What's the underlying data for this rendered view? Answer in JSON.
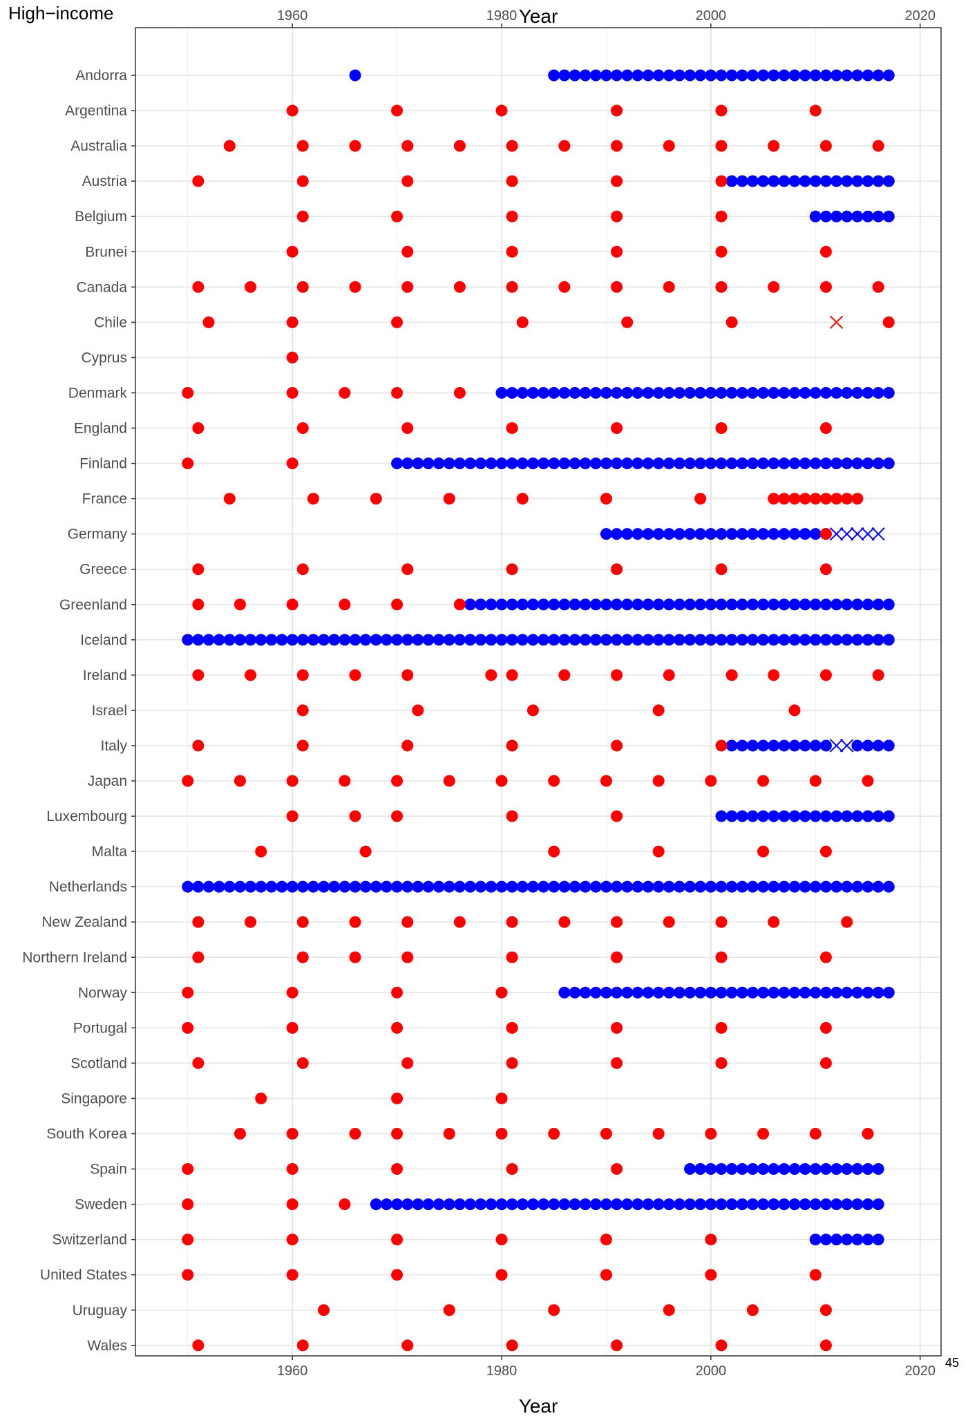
{
  "page": {
    "title": "High−income",
    "page_number": "45"
  },
  "chart_data": {
    "type": "scatter",
    "xlabel": "Year",
    "ylabel": "",
    "xlim": [
      1945,
      2022
    ],
    "xticks": [
      1960,
      1980,
      2000,
      2020
    ],
    "grid": true,
    "legend": "none",
    "colors": {
      "red": "#ff0000",
      "blue": "#0000ff"
    },
    "categories": [
      "Andorra",
      "Argentina",
      "Australia",
      "Austria",
      "Belgium",
      "Brunei",
      "Canada",
      "Chile",
      "Cyprus",
      "Denmark",
      "England",
      "Finland",
      "France",
      "Germany",
      "Greece",
      "Greenland",
      "Iceland",
      "Ireland",
      "Israel",
      "Italy",
      "Japan",
      "Luxembourg",
      "Malta",
      "Netherlands",
      "New Zealand",
      "Northern Ireland",
      "Norway",
      "Portugal",
      "Scotland",
      "Singapore",
      "South Korea",
      "Spain",
      "Sweden",
      "Switzerland",
      "United States",
      "Uruguay",
      "Wales"
    ],
    "rows": [
      {
        "name": "Andorra",
        "red": [],
        "blue": [
          1966,
          [
            1985,
            2017
          ]
        ],
        "red_x": [],
        "blue_x": []
      },
      {
        "name": "Argentina",
        "red": [
          1960,
          1970,
          1980,
          1991,
          2001,
          2010
        ],
        "blue": [],
        "red_x": [],
        "blue_x": []
      },
      {
        "name": "Australia",
        "red": [
          1954,
          1961,
          1966,
          1971,
          1976,
          1981,
          1986,
          1991,
          1996,
          2001,
          2006,
          2011,
          2016
        ],
        "blue": [],
        "red_x": [],
        "blue_x": []
      },
      {
        "name": "Austria",
        "red": [
          1951,
          1961,
          1971,
          1981,
          1991,
          2001
        ],
        "blue": [
          [
            2002,
            2017
          ]
        ],
        "red_x": [],
        "blue_x": []
      },
      {
        "name": "Belgium",
        "red": [
          1961,
          1970,
          1981,
          1991,
          2001
        ],
        "blue": [
          [
            2010,
            2017
          ]
        ],
        "red_x": [],
        "blue_x": []
      },
      {
        "name": "Brunei",
        "red": [
          1960,
          1971,
          1981,
          1991,
          2001,
          2011
        ],
        "blue": [],
        "red_x": [],
        "blue_x": []
      },
      {
        "name": "Canada",
        "red": [
          1951,
          1956,
          1961,
          1966,
          1971,
          1976,
          1981,
          1986,
          1991,
          1996,
          2001,
          2006,
          2011,
          2016
        ],
        "blue": [],
        "red_x": [],
        "blue_x": []
      },
      {
        "name": "Chile",
        "red": [
          1952,
          1960,
          1970,
          1982,
          1992,
          2002,
          2017
        ],
        "blue": [],
        "red_x": [
          2012
        ],
        "blue_x": []
      },
      {
        "name": "Cyprus",
        "red": [
          1960
        ],
        "blue": [],
        "red_x": [],
        "blue_x": []
      },
      {
        "name": "Denmark",
        "red": [
          1950,
          1960,
          1965,
          1970,
          1976
        ],
        "blue": [
          [
            1980,
            2017
          ]
        ],
        "red_x": [],
        "blue_x": []
      },
      {
        "name": "England",
        "red": [
          1951,
          1961,
          1971,
          1981,
          1991,
          2001,
          2011
        ],
        "blue": [],
        "red_x": [],
        "blue_x": []
      },
      {
        "name": "Finland",
        "red": [
          1950,
          1960
        ],
        "blue": [
          [
            1970,
            2017
          ]
        ],
        "red_x": [],
        "blue_x": []
      },
      {
        "name": "France",
        "red": [
          1954,
          1962,
          1968,
          1975,
          1982,
          1990,
          1999,
          [
            2006,
            2014
          ]
        ],
        "blue": [],
        "red_x": [],
        "blue_x": []
      },
      {
        "name": "Germany",
        "red": [
          2011
        ],
        "blue": [
          [
            1990,
            2011
          ]
        ],
        "red_x": [],
        "blue_x": [
          [
            2012,
            2016
          ]
        ]
      },
      {
        "name": "Greece",
        "red": [
          1951,
          1961,
          1971,
          1981,
          1991,
          2001,
          2011
        ],
        "blue": [],
        "red_x": [],
        "blue_x": []
      },
      {
        "name": "Greenland",
        "red": [
          1951,
          1955,
          1960,
          1965,
          1970,
          1976
        ],
        "blue": [
          [
            1977,
            2017
          ]
        ],
        "red_x": [],
        "blue_x": []
      },
      {
        "name": "Iceland",
        "red": [],
        "blue": [
          [
            1950,
            2017
          ]
        ],
        "red_x": [],
        "blue_x": []
      },
      {
        "name": "Ireland",
        "red": [
          1951,
          1956,
          1961,
          1966,
          1971,
          1979,
          1981,
          1986,
          1991,
          1996,
          2002,
          2006,
          2011,
          2016
        ],
        "blue": [],
        "red_x": [],
        "blue_x": []
      },
      {
        "name": "Israel",
        "red": [
          1961,
          1972,
          1983,
          1995,
          2008
        ],
        "blue": [],
        "red_x": [],
        "blue_x": []
      },
      {
        "name": "Italy",
        "red": [
          1951,
          1961,
          1971,
          1981,
          1991,
          2001
        ],
        "blue": [
          [
            2002,
            2011
          ],
          [
            2014,
            2017
          ]
        ],
        "red_x": [],
        "blue_x": [
          2012,
          2013
        ]
      },
      {
        "name": "Japan",
        "red": [
          1950,
          1955,
          1960,
          1965,
          1970,
          1975,
          1980,
          1985,
          1990,
          1995,
          2000,
          2005,
          2010,
          2015
        ],
        "blue": [],
        "red_x": [],
        "blue_x": []
      },
      {
        "name": "Luxembourg",
        "red": [
          1960,
          1966,
          1970,
          1981,
          1991
        ],
        "blue": [
          [
            2001,
            2017
          ]
        ],
        "red_x": [],
        "blue_x": []
      },
      {
        "name": "Malta",
        "red": [
          1957,
          1967,
          1985,
          1995,
          2005,
          2011
        ],
        "blue": [],
        "red_x": [],
        "blue_x": []
      },
      {
        "name": "Netherlands",
        "red": [],
        "blue": [
          [
            1950,
            2017
          ]
        ],
        "red_x": [],
        "blue_x": []
      },
      {
        "name": "New Zealand",
        "red": [
          1951,
          1956,
          1961,
          1966,
          1971,
          1976,
          1981,
          1986,
          1991,
          1996,
          2001,
          2006,
          2013
        ],
        "blue": [],
        "red_x": [],
        "blue_x": []
      },
      {
        "name": "Northern Ireland",
        "red": [
          1951,
          1961,
          1966,
          1971,
          1981,
          1991,
          2001,
          2011
        ],
        "blue": [],
        "red_x": [],
        "blue_x": []
      },
      {
        "name": "Norway",
        "red": [
          1950,
          1960,
          1970,
          1980
        ],
        "blue": [
          [
            1986,
            2017
          ]
        ],
        "red_x": [],
        "blue_x": []
      },
      {
        "name": "Portugal",
        "red": [
          1950,
          1960,
          1970,
          1981,
          1991,
          2001,
          2011
        ],
        "blue": [],
        "red_x": [],
        "blue_x": []
      },
      {
        "name": "Scotland",
        "red": [
          1951,
          1961,
          1971,
          1981,
          1991,
          2001,
          2011
        ],
        "blue": [],
        "red_x": [],
        "blue_x": []
      },
      {
        "name": "Singapore",
        "red": [
          1957,
          1970,
          1980
        ],
        "blue": [],
        "red_x": [],
        "blue_x": []
      },
      {
        "name": "South Korea",
        "red": [
          1955,
          1960,
          1966,
          1970,
          1975,
          1980,
          1985,
          1990,
          1995,
          2000,
          2005,
          2010,
          2015
        ],
        "blue": [],
        "red_x": [],
        "blue_x": []
      },
      {
        "name": "Spain",
        "red": [
          1950,
          1960,
          1970,
          1981,
          1991
        ],
        "blue": [
          [
            1998,
            2016
          ]
        ],
        "red_x": [],
        "blue_x": []
      },
      {
        "name": "Sweden",
        "red": [
          1950,
          1960,
          1965
        ],
        "blue": [
          [
            1968,
            2016
          ]
        ],
        "red_x": [],
        "blue_x": []
      },
      {
        "name": "Switzerland",
        "red": [
          1950,
          1960,
          1970,
          1980,
          1990,
          2000
        ],
        "blue": [
          [
            2010,
            2016
          ]
        ],
        "red_x": [],
        "blue_x": []
      },
      {
        "name": "United States",
        "red": [
          1950,
          1960,
          1970,
          1980,
          1990,
          2000,
          2010
        ],
        "blue": [],
        "red_x": [],
        "blue_x": []
      },
      {
        "name": "Uruguay",
        "red": [
          1963,
          1975,
          1985,
          1996,
          2004,
          2011
        ],
        "blue": [],
        "red_x": [],
        "blue_x": []
      },
      {
        "name": "Wales",
        "red": [
          1951,
          1961,
          1971,
          1981,
          1991,
          2001,
          2011
        ],
        "blue": [],
        "red_x": [],
        "blue_x": []
      }
    ]
  }
}
